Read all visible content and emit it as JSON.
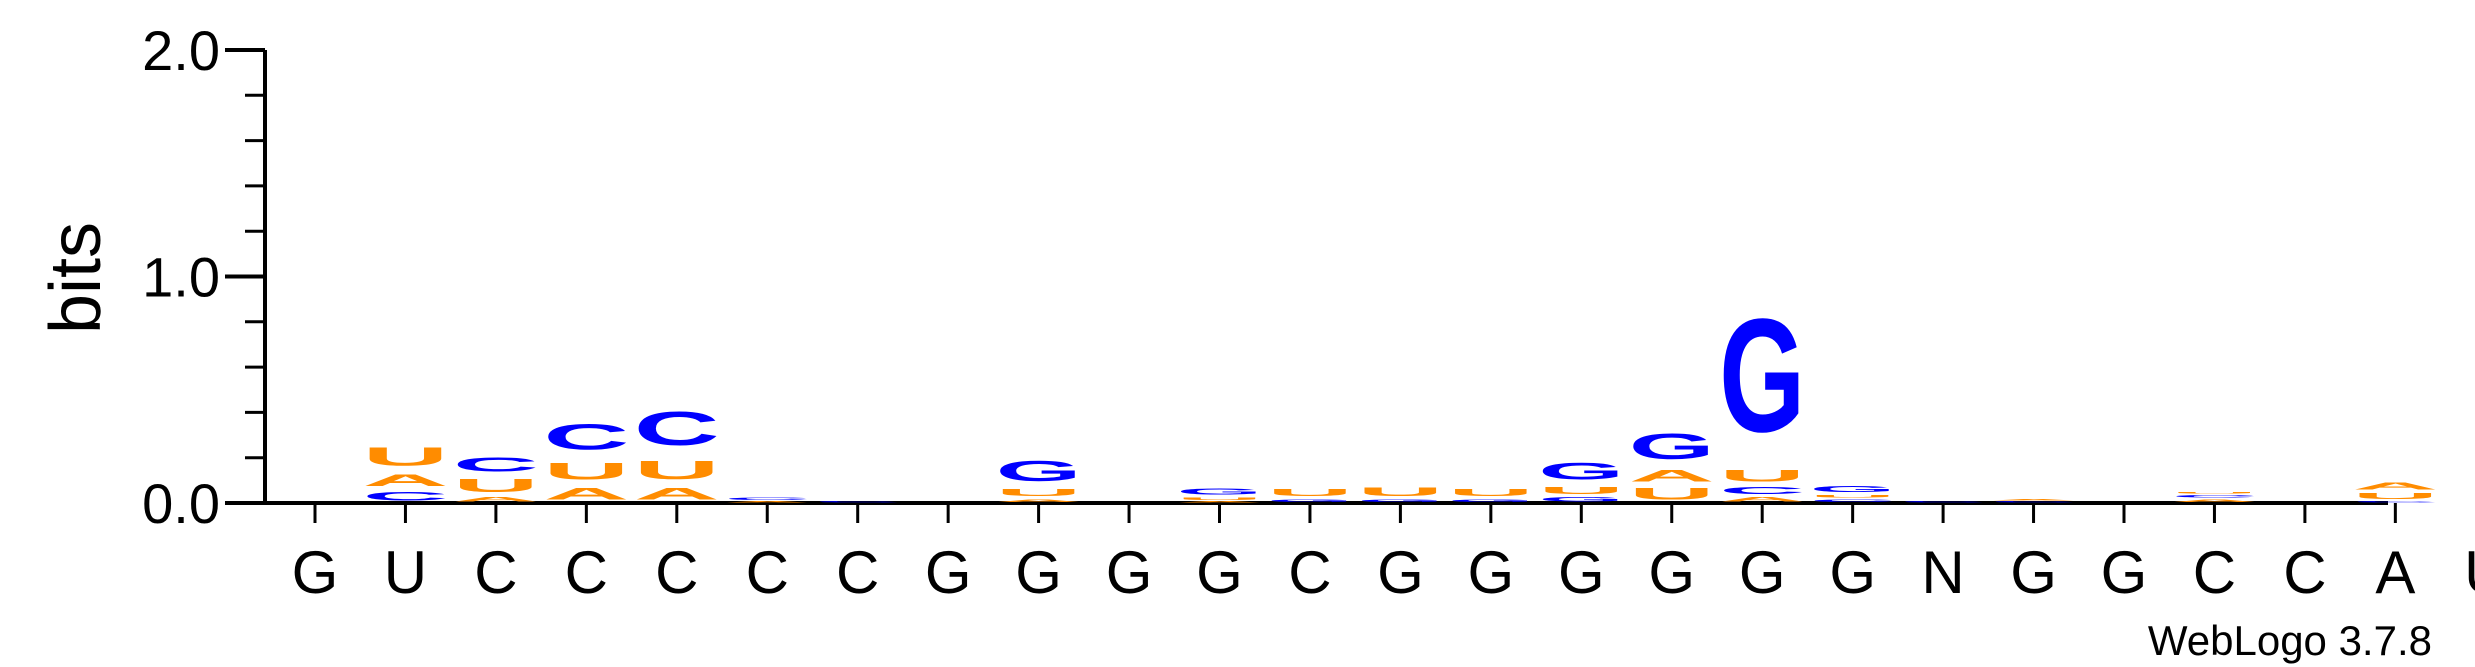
{
  "chart_data": {
    "type": "sequence-logo",
    "ylabel": "bits",
    "ylim": [
      0,
      2.0
    ],
    "yticks": [
      "0.0",
      "1.0",
      "2.0"
    ],
    "yticks_values": [
      0,
      1,
      2
    ],
    "credit": "WebLogo 3.7.8",
    "colors": {
      "A": "#ff8c00",
      "U": "#ff8c00",
      "C": "#0000ff",
      "G": "#0000ff"
    },
    "positions": [
      {
        "label": "G",
        "stack": []
      },
      {
        "label": "U",
        "stack": [
          {
            "letter": "C",
            "bits": 0.06
          },
          {
            "letter": "A",
            "bits": 0.08
          },
          {
            "letter": "U",
            "bits": 0.13
          }
        ]
      },
      {
        "label": "C",
        "stack": [
          {
            "letter": "A",
            "bits": 0.03
          },
          {
            "letter": "U",
            "bits": 0.09
          },
          {
            "letter": "C",
            "bits": 0.1
          }
        ]
      },
      {
        "label": "C",
        "stack": [
          {
            "letter": "A",
            "bits": 0.08
          },
          {
            "letter": "U",
            "bits": 0.12
          },
          {
            "letter": "C",
            "bits": 0.18
          }
        ]
      },
      {
        "label": "C",
        "stack": [
          {
            "letter": "A",
            "bits": 0.08
          },
          {
            "letter": "U",
            "bits": 0.13
          },
          {
            "letter": "C",
            "bits": 0.24
          }
        ]
      },
      {
        "label": "C",
        "stack": [
          {
            "letter": "A",
            "bits": 0.01
          },
          {
            "letter": "C",
            "bits": 0.02
          }
        ]
      },
      {
        "label": "C",
        "stack": [
          {
            "letter": "C",
            "bits": 0.01
          }
        ]
      },
      {
        "label": "G",
        "stack": []
      },
      {
        "label": "G",
        "stack": [
          {
            "letter": "A",
            "bits": 0.02
          },
          {
            "letter": "U",
            "bits": 0.05
          },
          {
            "letter": "G",
            "bits": 0.14
          }
        ]
      },
      {
        "label": "G",
        "stack": []
      },
      {
        "label": "G",
        "stack": [
          {
            "letter": "A",
            "bits": 0.01
          },
          {
            "letter": "U",
            "bits": 0.02
          },
          {
            "letter": "G",
            "bits": 0.04
          }
        ]
      },
      {
        "label": "C",
        "stack": [
          {
            "letter": "G",
            "bits": 0.02
          },
          {
            "letter": "U",
            "bits": 0.05
          }
        ]
      },
      {
        "label": "G",
        "stack": [
          {
            "letter": "G",
            "bits": 0.02
          },
          {
            "letter": "U",
            "bits": 0.06
          }
        ]
      },
      {
        "label": "G",
        "stack": [
          {
            "letter": "G",
            "bits": 0.02
          },
          {
            "letter": "U",
            "bits": 0.05
          }
        ]
      },
      {
        "label": "G",
        "stack": [
          {
            "letter": "G",
            "bits": 0.03
          },
          {
            "letter": "U",
            "bits": 0.05
          },
          {
            "letter": "G",
            "bits": 0.12
          }
        ]
      },
      {
        "label": "G",
        "stack": [
          {
            "letter": "U",
            "bits": 0.08
          },
          {
            "letter": "A",
            "bits": 0.08
          },
          {
            "letter": "G",
            "bits": 0.18
          }
        ]
      },
      {
        "label": "G",
        "stack": [
          {
            "letter": "A",
            "bits": 0.03
          },
          {
            "letter": "C",
            "bits": 0.05
          },
          {
            "letter": "U",
            "bits": 0.08
          },
          {
            "letter": "G",
            "bits": 0.8
          }
        ]
      },
      {
        "label": "G",
        "stack": [
          {
            "letter": "C",
            "bits": 0.02
          },
          {
            "letter": "U",
            "bits": 0.02
          },
          {
            "letter": "G",
            "bits": 0.04
          }
        ]
      },
      {
        "label": "N",
        "stack": [
          {
            "letter": "C",
            "bits": 0.01
          }
        ]
      },
      {
        "label": "G",
        "stack": [
          {
            "letter": "C",
            "bits": 0.01
          },
          {
            "letter": "A",
            "bits": 0.01
          }
        ]
      },
      {
        "label": "G",
        "stack": []
      },
      {
        "label": "C",
        "stack": [
          {
            "letter": "A",
            "bits": 0.02
          },
          {
            "letter": "C",
            "bits": 0.02
          },
          {
            "letter": "U",
            "bits": 0.01
          }
        ]
      },
      {
        "label": "C",
        "stack": []
      },
      {
        "label": "A",
        "stack": [
          {
            "letter": "C",
            "bits": 0.01
          },
          {
            "letter": "U",
            "bits": 0.04
          },
          {
            "letter": "A",
            "bits": 0.05
          }
        ]
      },
      {
        "label": "U",
        "stack": []
      }
    ]
  }
}
